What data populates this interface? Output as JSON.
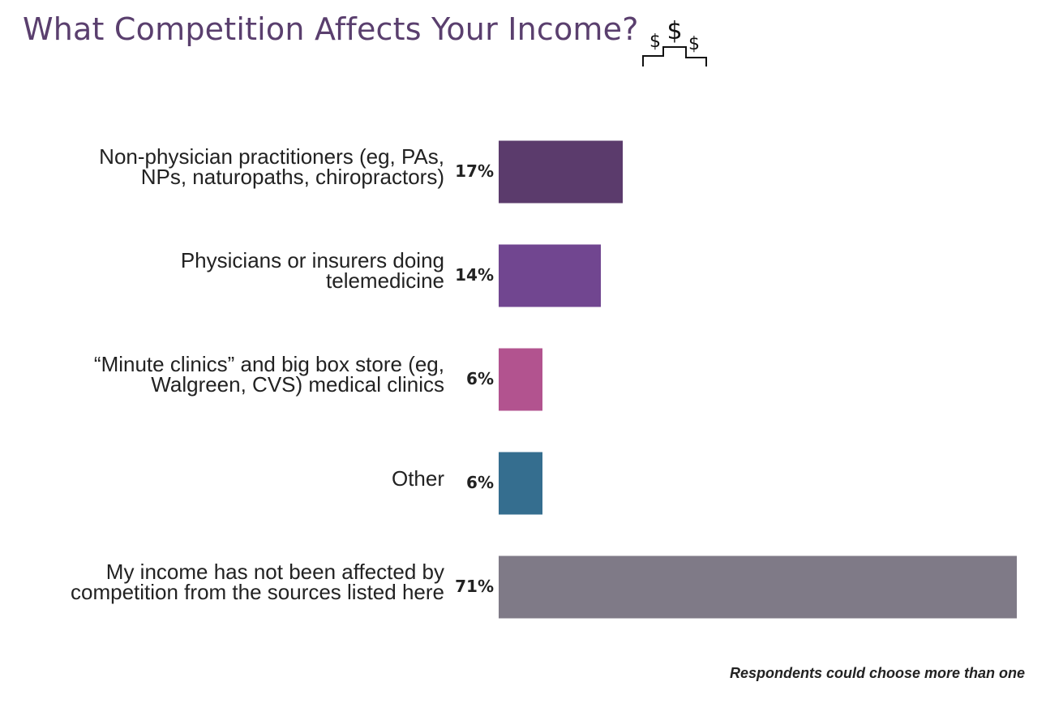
{
  "title": "What Competition Affects Your Income?",
  "icon": "dollar-podium-icon",
  "footnote": "Respondents could choose more than one",
  "chart_data": {
    "type": "bar",
    "orientation": "horizontal",
    "title": "What Competition Affects Your Income?",
    "xlabel": "",
    "ylabel": "",
    "xlim": [
      0,
      71
    ],
    "grid": false,
    "categories": [
      "Non-physician practitioners (eg, PAs,\nNPs, naturopaths, chiropractors)",
      "Physicians or insurers doing\ntelemedicine",
      "“Minute clinics” and big box store (eg,\nWalgreen, CVS) medical clinics",
      "Other",
      "My income has not been affected by\ncompetition from the sources listed here"
    ],
    "values": [
      17,
      14,
      6,
      6,
      71
    ],
    "value_labels": [
      "17%",
      "14%",
      "6%",
      "6%",
      "71%"
    ],
    "colors": [
      "#5b3b6c",
      "#714690",
      "#b2538f",
      "#356e8f",
      "#7f7a87"
    ]
  }
}
